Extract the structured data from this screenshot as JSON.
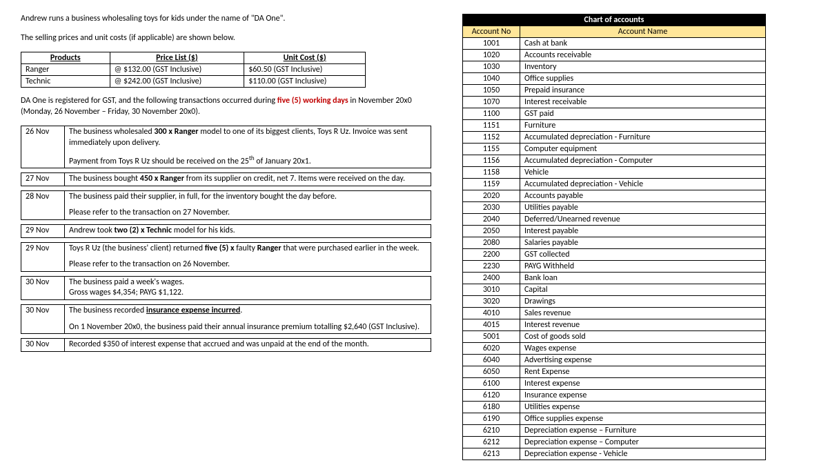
{
  "intro": {
    "line1_pre": "Andrew runs a business wholesaling toys for kids under the name of ",
    "line1_quote": "\"DA One\".",
    "line2": "The selling prices and unit costs (if applicable) are shown below."
  },
  "products": {
    "headers": {
      "c1": "Products",
      "c2": "Price List ($)",
      "c3": "Unit Cost ($)"
    },
    "rows": [
      {
        "name": "Ranger",
        "price": "@ $132.00 (GST Inclusive)",
        "cost": "$60.50 (GST Inclusive)"
      },
      {
        "name": "Technic",
        "price": "@ $242.00 (GST Inclusive)",
        "cost": "$110.00 (GST Inclusive)"
      }
    ]
  },
  "gst": {
    "pre": "DA One is registered for GST, and the following transactions occurred during ",
    "red": "five (5) working days",
    "post": " in November 20x0 (Monday, 26 November – Friday, 30 November 20x0)."
  },
  "tx": [
    {
      "date": "26 Nov",
      "p1a": "The business wholesaled ",
      "p1b": "300 x Ranger",
      "p1c": " model to one of its biggest clients, Toys R Uz. Invoice was sent immediately upon delivery.",
      "p2a": "Payment from Toys R Uz should be received on the 25",
      "p2sup": "th",
      "p2b": " of January 20x1."
    },
    {
      "date": "27 Nov",
      "p1a": "The business bought ",
      "p1b": "450 x Ranger",
      "p1c": " from its supplier on credit, net 7. Items were received on the day."
    },
    {
      "date": "28 Nov",
      "p1": "The business paid their supplier, in full, for the inventory bought the day before.",
      "p2": "Please refer to the transaction on 27 November."
    },
    {
      "date": "29 Nov",
      "p1a": "Andrew took ",
      "p1b": "two (2) x Technic",
      "p1c": " model for his kids."
    },
    {
      "date": "29 Nov",
      "p1a": "Toys R Uz (the business' client) returned ",
      "p1b": "five (5) x",
      "p1c": " faulty ",
      "p1d": "Ranger",
      "p1e": " that were purchased earlier in the week.",
      "p2": "Please refer to the transaction on 26 November."
    },
    {
      "date": "30 Nov",
      "p1": "The business paid a week's wages.",
      "p2": "Gross wages $4,354; PAYG $1,122."
    },
    {
      "date": "30 Nov",
      "p1a": "The business recorded ",
      "p1b": "insurance expense incurred",
      "p1c": ".",
      "p2": "On 1 November 20x0, the business paid their annual insurance premium totalling $2,640 (GST Inclusive)."
    },
    {
      "date": "30 Nov",
      "p1": "Recorded $350 of interest expense that accrued and was unpaid at the end of the month."
    }
  ],
  "coa": {
    "title": "Chart of accounts",
    "h1": "Account No",
    "h2": "Account Name",
    "rows": [
      [
        "1001",
        "Cash at bank"
      ],
      [
        "1020",
        "Accounts receivable"
      ],
      [
        "1030",
        "Inventory"
      ],
      [
        "1040",
        "Office supplies"
      ],
      [
        "1050",
        "Prepaid insurance"
      ],
      [
        "1070",
        "Interest receivable"
      ],
      [
        "1100",
        "GST paid"
      ],
      [
        "1151",
        "Furniture"
      ],
      [
        "1152",
        "Accumulated depreciation - Furniture"
      ],
      [
        "1155",
        "Computer equipment"
      ],
      [
        "1156",
        "Accumulated depreciation - Computer"
      ],
      [
        "1158",
        "Vehicle"
      ],
      [
        "1159",
        "Accumulated depreciation - Vehicle"
      ],
      [
        "2020",
        "Accounts payable"
      ],
      [
        "2030",
        "Utilities payable"
      ],
      [
        "2040",
        "Deferred/Unearned revenue"
      ],
      [
        "2050",
        "Interest payable"
      ],
      [
        "2080",
        "Salaries payable"
      ],
      [
        "2200",
        "GST collected"
      ],
      [
        "2230",
        "PAYG Withheld"
      ],
      [
        "2400",
        "Bank loan"
      ],
      [
        "3010",
        "Capital"
      ],
      [
        "3020",
        "Drawings"
      ],
      [
        "4010",
        "Sales revenue"
      ],
      [
        "4015",
        "Interest revenue"
      ],
      [
        "5001",
        "Cost of goods sold"
      ],
      [
        "6020",
        "Wages expense"
      ],
      [
        "6040",
        "Advertising expense"
      ],
      [
        "6050",
        "Rent Expense"
      ],
      [
        "6100",
        "Interest expense"
      ],
      [
        "6120",
        "Insurance expense"
      ],
      [
        "6180",
        "Utilities expense"
      ],
      [
        "6190",
        "Office supplies expense"
      ],
      [
        "6210",
        "Depreciation expense – Furniture"
      ],
      [
        "6212",
        "Depreciation expense – Computer"
      ],
      [
        "6213",
        "Depreciation expense - Vehicle"
      ]
    ]
  }
}
